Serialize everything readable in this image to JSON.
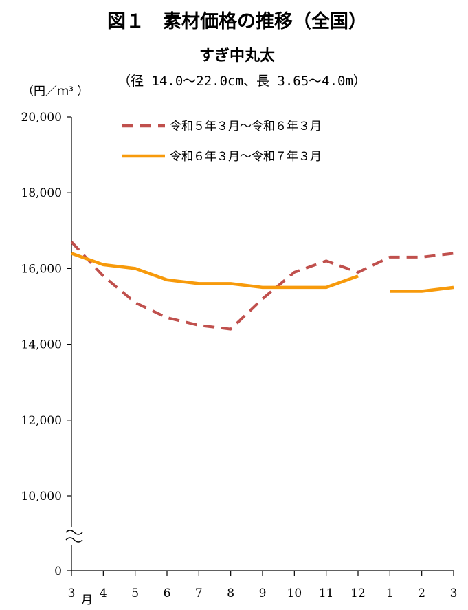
{
  "chart_data": {
    "type": "line",
    "title": "図１　素材価格の推移（全国）",
    "subtitle": "すぎ中丸太",
    "spec": "（径 14.0～22.0cm、長 3.65～4.0m）",
    "ylabel": "（円／ｍ³ ）",
    "x_unit_label": "月",
    "x_categories": [
      "3",
      "4",
      "5",
      "6",
      "7",
      "8",
      "9",
      "10",
      "11",
      "12",
      "1",
      "2",
      "3"
    ],
    "y_ticks": [
      "20,000",
      "18,000",
      "16,000",
      "14,000",
      "12,000",
      "10,000",
      "0"
    ],
    "ylim": [
      10000,
      20000
    ],
    "axis_break": true,
    "grid": false,
    "legend_position": "top",
    "series": [
      {
        "name": "令和５年３月～令和６年３月",
        "style": "dashed",
        "color": "#c0504d",
        "values": [
          16700,
          15800,
          15100,
          14700,
          14500,
          14400,
          15200,
          15900,
          16200,
          15900,
          16300,
          16300,
          16400
        ]
      },
      {
        "name": "令和６年３月～令和７年３月",
        "style": "solid",
        "color": "#f79a0b",
        "values": [
          16400,
          16100,
          16000,
          15700,
          15600,
          15600,
          15500,
          15500,
          15500,
          15800,
          15400,
          15400,
          15500
        ],
        "gap_after_index": 9
      }
    ]
  }
}
